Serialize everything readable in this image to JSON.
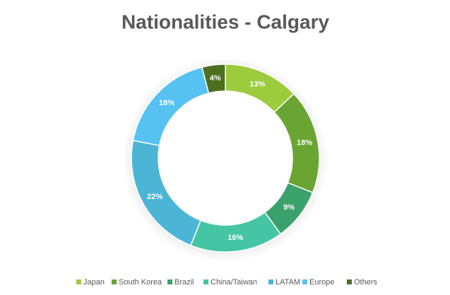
{
  "chart_data": {
    "type": "doughnut",
    "title": "Nationalities - Calgary",
    "categories": [
      "Japan",
      "South Korea",
      "Brazil",
      "China/Taiwan",
      "LATAM",
      "Europe",
      "Others"
    ],
    "values": [
      13,
      18,
      9,
      16,
      22,
      18,
      4
    ],
    "value_labels": [
      "13%",
      "18%",
      "9%",
      "16%",
      "22%",
      "18%",
      "4%"
    ],
    "colors": [
      "#9ccb3e",
      "#6aa432",
      "#3aa16c",
      "#45c5a3",
      "#4cb5d6",
      "#55c2f2",
      "#4d6f20"
    ],
    "legend": "bottom"
  }
}
